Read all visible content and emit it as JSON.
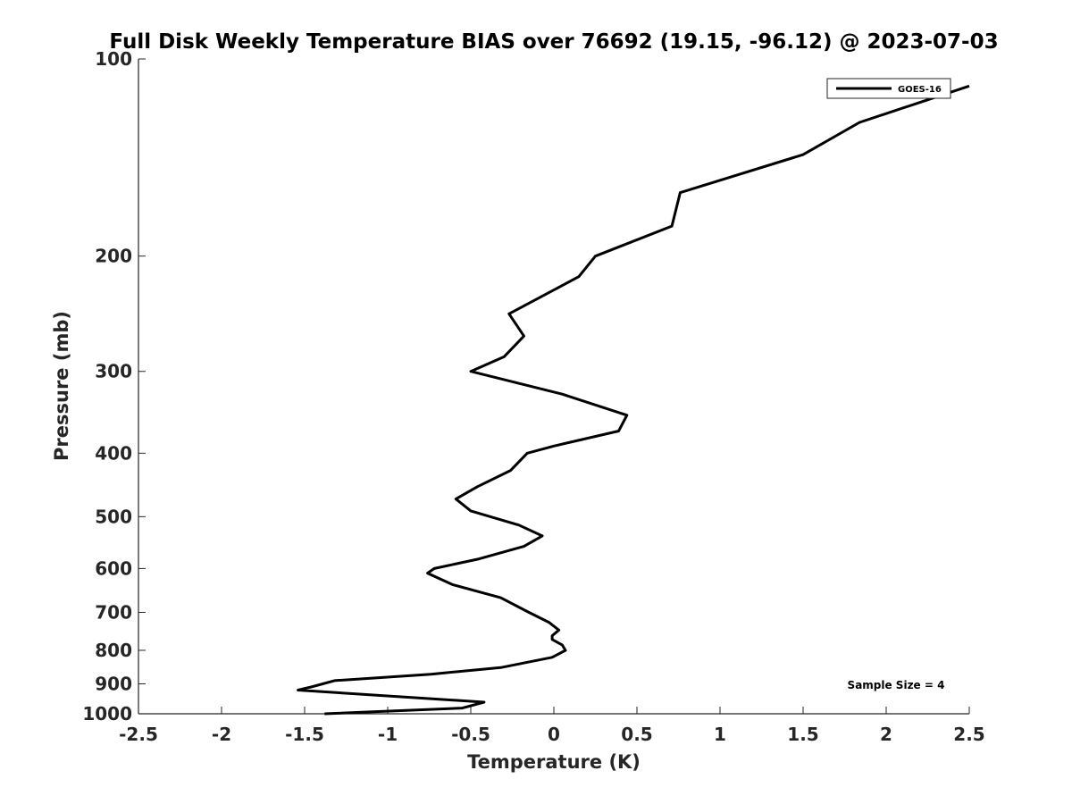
{
  "chart_data": {
    "type": "line",
    "title": "Full Disk Weekly Temperature BIAS over 76692 (19.15, -96.12) @ 2023-07-03",
    "xlabel": "Temperature (K)",
    "ylabel": "Pressure (mb)",
    "xlim": [
      -2.5,
      2.5
    ],
    "ylim": [
      1000,
      100
    ],
    "y_scale": "log",
    "y_reversed": true,
    "grid": false,
    "x_ticks": [
      "-2.5",
      "-2",
      "-1.5",
      "-1",
      "-0.5",
      "0",
      "0.5",
      "1",
      "1.5",
      "2",
      "2.5"
    ],
    "y_ticks": [
      "100",
      "200",
      "300",
      "400",
      "500",
      "600",
      "700",
      "800",
      "900",
      "1000"
    ],
    "legend": {
      "position": "top-right",
      "entries": [
        "GOES-16"
      ]
    },
    "annotation": "Sample Size = 4",
    "series": [
      {
        "name": "GOES-16",
        "color": "#000000",
        "x": [
          2.5,
          1.84,
          1.5,
          0.76,
          0.71,
          0.25,
          0.15,
          -0.27,
          -0.18,
          -0.3,
          -0.5,
          0.05,
          0.44,
          0.39,
          0.0,
          -0.16,
          -0.26,
          -0.46,
          -0.59,
          -0.5,
          -0.21,
          -0.07,
          -0.18,
          -0.45,
          -0.72,
          -0.76,
          -0.61,
          -0.32,
          -0.15,
          -0.03,
          0.03,
          -0.01,
          -0.01,
          0.05,
          0.07,
          -0.01,
          -0.32,
          -0.74,
          -1.32,
          -1.46,
          -1.54,
          -0.42,
          -0.55,
          -1.38
        ],
        "y": [
          110,
          125,
          140,
          160,
          180,
          200,
          215,
          245,
          265,
          285,
          300,
          325,
          350,
          370,
          390,
          400,
          425,
          450,
          470,
          490,
          515,
          535,
          555,
          580,
          600,
          610,
          635,
          665,
          700,
          725,
          745,
          760,
          770,
          785,
          800,
          820,
          850,
          870,
          890,
          910,
          920,
          960,
          980,
          1000
        ]
      }
    ]
  }
}
